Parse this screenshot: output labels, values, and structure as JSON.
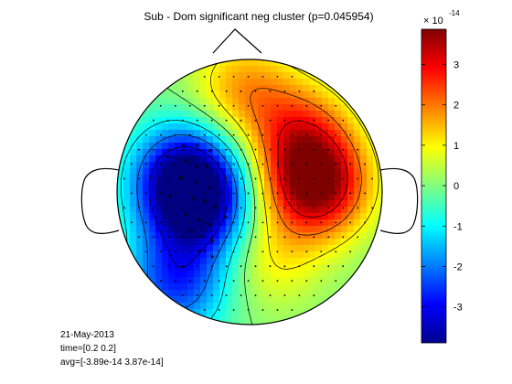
{
  "chart_data": {
    "type": "heatmap",
    "title": "Sub - Dom significant neg cluster (p=0.045954)",
    "colorbar": {
      "range": [
        -3.89,
        3.87
      ],
      "ticks": [
        "-3",
        "-2",
        "-1",
        "0",
        "1",
        "2",
        "3"
      ],
      "tick_values": [
        -3,
        -2,
        -1,
        0,
        1,
        2,
        3
      ],
      "exponent_prefix": "× 10",
      "exponent": "-14",
      "colormap": "jet"
    },
    "blobs": [
      {
        "name": "negative-cluster-left",
        "x": -0.48,
        "y": 0.12,
        "value": -3.6
      },
      {
        "name": "negative-left-lower",
        "x": -0.38,
        "y": -0.15,
        "value": -2.6
      },
      {
        "name": "negative-bottom-left",
        "x": -0.55,
        "y": -0.7,
        "value": -2.4
      },
      {
        "name": "positive-right",
        "x": 0.5,
        "y": 0.05,
        "value": 3.8
      },
      {
        "name": "positive-right-upper",
        "x": 0.38,
        "y": 0.45,
        "value": 2.0
      },
      {
        "name": "positive-top",
        "x": -0.05,
        "y": 0.78,
        "value": 1.6
      },
      {
        "name": "positive-center-bottom",
        "x": 0.15,
        "y": -0.5,
        "value": 1.0
      }
    ],
    "cluster_markers": [
      [
        -0.5,
        0.34
      ],
      [
        -0.4,
        0.34
      ],
      [
        -0.3,
        0.3
      ],
      [
        -0.62,
        0.26
      ],
      [
        -0.48,
        0.22
      ],
      [
        -0.4,
        0.18
      ],
      [
        -0.32,
        0.18
      ],
      [
        -0.52,
        0.1
      ],
      [
        -0.4,
        0.06
      ],
      [
        -0.3,
        0.02
      ],
      [
        -0.6,
        -0.04
      ],
      [
        -0.42,
        -0.06
      ],
      [
        -0.34,
        -0.08
      ],
      [
        -0.26,
        -0.12
      ],
      [
        -0.48,
        -0.18
      ],
      [
        -0.38,
        -0.22
      ],
      [
        -0.3,
        -0.26
      ],
      [
        -0.18,
        -0.2
      ],
      [
        -0.44,
        -0.3
      ],
      [
        -0.36,
        -0.34
      ],
      [
        -0.28,
        -0.38
      ],
      [
        -0.38,
        -0.46
      ],
      [
        -0.28,
        -0.5
      ]
    ]
  },
  "info": {
    "date": "21-May-2013",
    "time": "time=[0.2 0.2]",
    "avg": "avg=[-3.89e-14 3.87e-14]"
  }
}
